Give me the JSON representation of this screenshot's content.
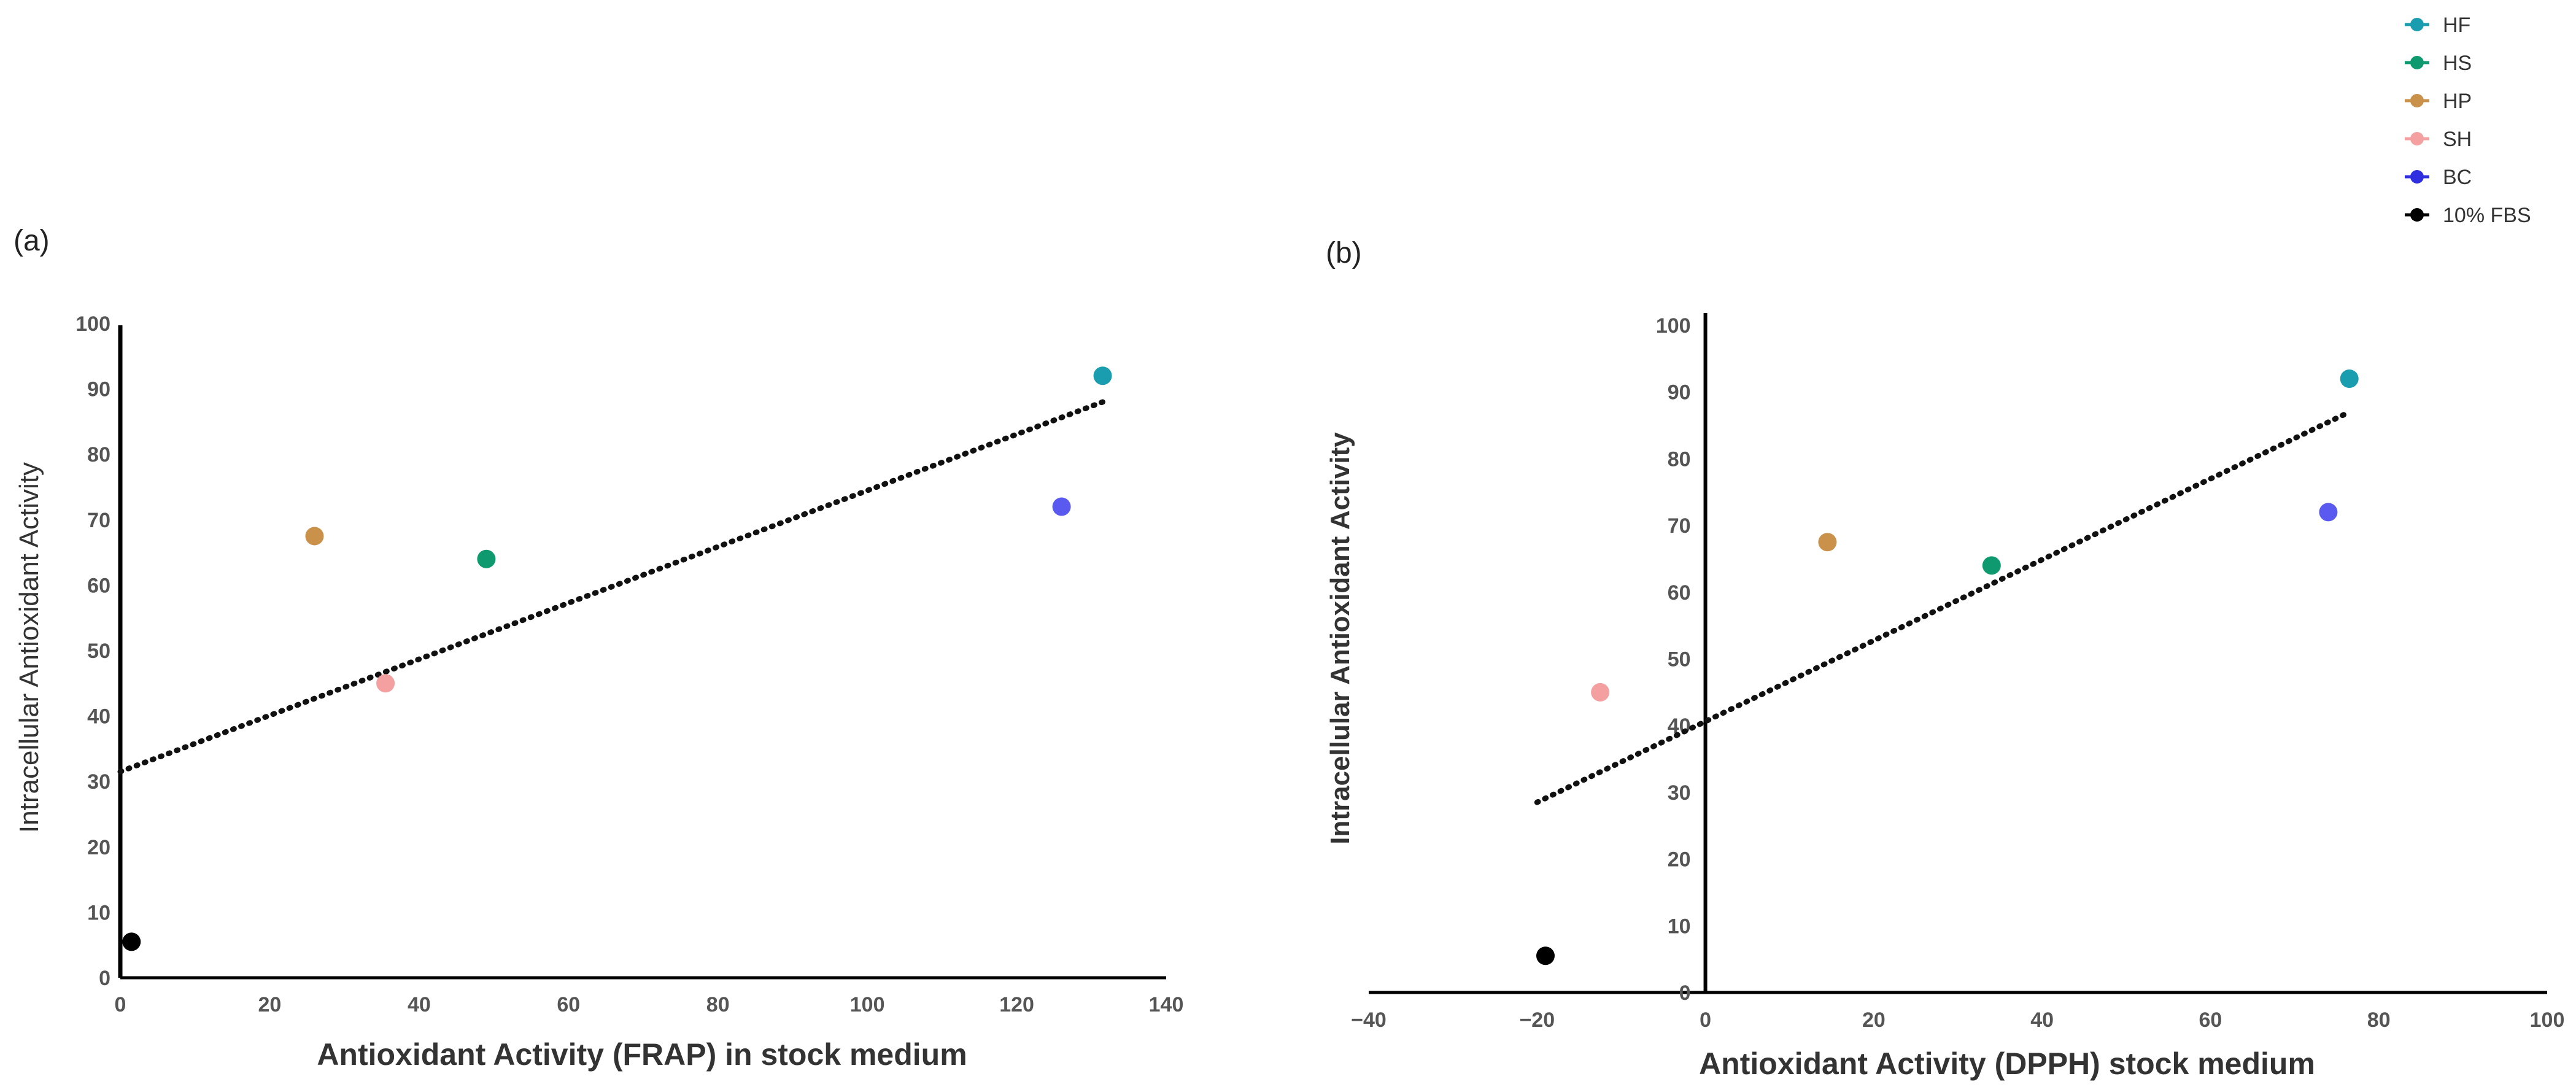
{
  "chart_data": [
    {
      "panel_label": "(a)",
      "type": "scatter",
      "xlabel": "Antioxidant Activity (FRAP) in stock medium",
      "ylabel": "Intracellular Antioxidant Activity",
      "xlim": [
        0,
        140
      ],
      "ylim": [
        0,
        100
      ],
      "xticks": [
        0,
        20,
        40,
        60,
        80,
        100,
        120,
        140
      ],
      "yticks": [
        0,
        10,
        20,
        30,
        40,
        50,
        60,
        70,
        80,
        90,
        100
      ],
      "points": [
        {
          "name": "HF",
          "x": 131.5,
          "y": 92,
          "color": "#1b9db0"
        },
        {
          "name": "HS",
          "x": 49,
          "y": 64,
          "color": "#0e9a6e"
        },
        {
          "name": "HP",
          "x": 26,
          "y": 67.5,
          "color": "#c9914a"
        },
        {
          "name": "SH",
          "x": 35.5,
          "y": 45,
          "color": "#f4a0a0"
        },
        {
          "name": "BC",
          "x": 126,
          "y": 72,
          "color": "#5a5af0"
        },
        {
          "name": "10% FBS",
          "x": 1.5,
          "y": 5.5,
          "color": "#000000"
        }
      ],
      "trendline": {
        "x": [
          0,
          131.5
        ],
        "y": [
          31.5,
          88
        ],
        "style": "dotted"
      }
    },
    {
      "panel_label": "(b)",
      "type": "scatter",
      "xlabel": "Antioxidant Activity (DPPH) stock medium",
      "ylabel": "Intracellular  Antioxidant  Activity",
      "xlim": [
        -40,
        100
      ],
      "ylim": [
        0,
        100
      ],
      "xticks": [
        -40,
        -20,
        0,
        20,
        40,
        60,
        80,
        100
      ],
      "xtick_labels": [
        "−40",
        "−20",
        "0",
        "20",
        "40",
        "60",
        "80",
        "100"
      ],
      "yticks": [
        0,
        10,
        20,
        30,
        40,
        50,
        60,
        70,
        80,
        90,
        100
      ],
      "points": [
        {
          "name": "HF",
          "x": 76.5,
          "y": 92,
          "color": "#1b9db0"
        },
        {
          "name": "HS",
          "x": 34,
          "y": 64,
          "color": "#0e9a6e"
        },
        {
          "name": "HP",
          "x": 14.5,
          "y": 67.5,
          "color": "#c9914a"
        },
        {
          "name": "SH",
          "x": -12.5,
          "y": 45,
          "color": "#f4a0a0"
        },
        {
          "name": "BC",
          "x": 74,
          "y": 72,
          "color": "#5a5af0"
        },
        {
          "name": "10% FBS",
          "x": -19,
          "y": 5.5,
          "color": "#000000"
        }
      ],
      "trendline": {
        "x": [
          -20,
          76.5
        ],
        "y": [
          28.5,
          87
        ],
        "style": "dotted"
      }
    }
  ],
  "legend": {
    "position": "top-right",
    "entries": [
      {
        "label": "HF",
        "color": "#1b9db0"
      },
      {
        "label": "HS",
        "color": "#0e9a6e"
      },
      {
        "label": "HP",
        "color": "#c9914a"
      },
      {
        "label": "SH",
        "color": "#f4a0a0"
      },
      {
        "label": "BC",
        "color": "#2f2fe0"
      },
      {
        "label": "10% FBS",
        "color": "#000000"
      }
    ]
  }
}
